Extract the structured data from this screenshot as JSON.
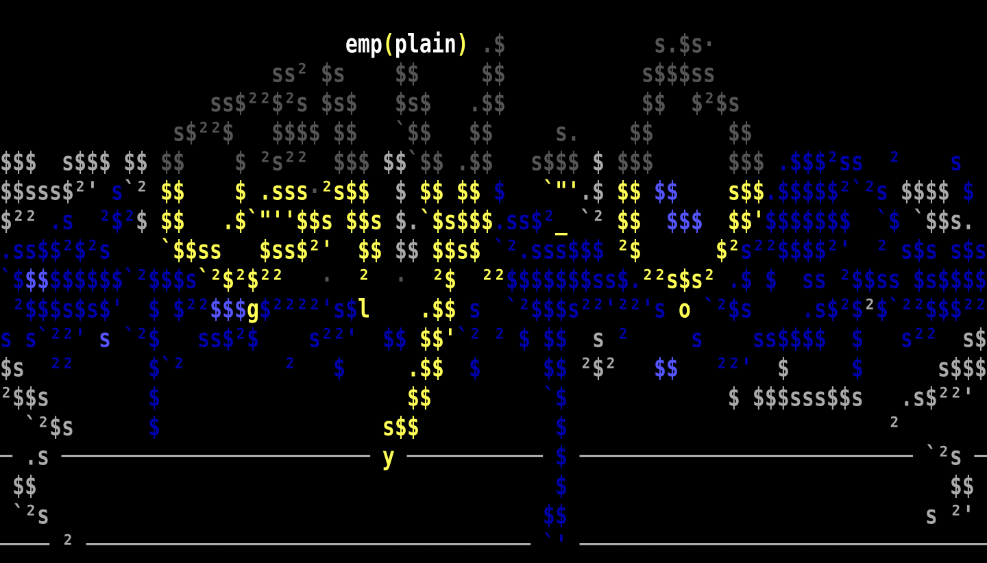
{
  "palette": {
    "W": "#ffffff",
    "Y": "#ffff55",
    "G": "#aaaaaa",
    "D": "#555555",
    "B": "#0000aa",
    "L": "#5555ff"
  },
  "rows": [
    [],
    [
      [
        "                            ",
        ""
      ],
      [
        "emp",
        "W"
      ],
      [
        "(",
        "Y"
      ],
      [
        "plain",
        "W"
      ],
      [
        ")",
        "Y"
      ],
      [
        " ",
        ""
      ],
      [
        ".$",
        "D"
      ],
      [
        "            ",
        ""
      ],
      [
        "s.$s·",
        "D"
      ]
    ],
    [
      [
        "                      ",
        ""
      ],
      [
        "ss² $s",
        "D"
      ],
      [
        "    ",
        ""
      ],
      [
        "$$",
        "D"
      ],
      [
        "     ",
        ""
      ],
      [
        "$$",
        "D"
      ],
      [
        "           ",
        ""
      ],
      [
        "s$$$ss",
        "D"
      ]
    ],
    [
      [
        "                 ",
        ""
      ],
      [
        "ss$²²$²s $s$",
        "D"
      ],
      [
        "   ",
        ""
      ],
      [
        "$s$",
        "D"
      ],
      [
        "   ",
        ""
      ],
      [
        ".$$",
        "D"
      ],
      [
        "           ",
        ""
      ],
      [
        "$$  $²$s",
        "D"
      ]
    ],
    [
      [
        "              ",
        ""
      ],
      [
        "s$²²$",
        "D"
      ],
      [
        "   ",
        ""
      ],
      [
        "$$$$ $$",
        "D"
      ],
      [
        "   ",
        ""
      ],
      [
        "`$$",
        "D"
      ],
      [
        "   ",
        ""
      ],
      [
        "$$",
        "D"
      ],
      [
        "     ",
        ""
      ],
      [
        "s.",
        "D"
      ],
      [
        "    ",
        ""
      ],
      [
        "$$",
        "D"
      ],
      [
        "      ",
        ""
      ],
      [
        "$$",
        "D"
      ]
    ],
    [
      [
        "$$$",
        "G"
      ],
      [
        "  ",
        ""
      ],
      [
        "s$$$ $$",
        "G"
      ],
      [
        " ",
        ""
      ],
      [
        "$$",
        "D"
      ],
      [
        "    ",
        ""
      ],
      [
        "$",
        "D"
      ],
      [
        " ",
        ""
      ],
      [
        "²s²²",
        "D"
      ],
      [
        "  ",
        ""
      ],
      [
        "$$$",
        "D"
      ],
      [
        " ",
        ""
      ],
      [
        "$$",
        "G"
      ],
      [
        "`$$ .$$",
        "D"
      ],
      [
        "   ",
        ""
      ],
      [
        "s$$$",
        "D"
      ],
      [
        " ",
        ""
      ],
      [
        "$",
        "G"
      ],
      [
        " ",
        ""
      ],
      [
        "$$$",
        "D"
      ],
      [
        "      ",
        ""
      ],
      [
        "$$$",
        "D"
      ],
      [
        " ",
        ""
      ],
      [
        ".$$$²ss",
        "B"
      ],
      [
        "  ",
        ""
      ],
      [
        "²",
        "B"
      ],
      [
        "    ",
        ""
      ],
      [
        "s",
        "B"
      ]
    ],
    [
      [
        "$$sss$²'",
        "G"
      ],
      [
        " ",
        ""
      ],
      [
        "s",
        "B"
      ],
      [
        "`²",
        "G"
      ],
      [
        " ",
        ""
      ],
      [
        "$$",
        "Y"
      ],
      [
        "    ",
        ""
      ],
      [
        "$",
        "Y"
      ],
      [
        " ",
        ""
      ],
      [
        ".sss",
        "Y"
      ],
      [
        "·",
        "D"
      ],
      [
        "²s$$",
        "Y"
      ],
      [
        "  ",
        ""
      ],
      [
        "$",
        "G"
      ],
      [
        " ",
        ""
      ],
      [
        "$$ $$",
        "Y"
      ],
      [
        " ",
        ""
      ],
      [
        "$",
        "B"
      ],
      [
        "   ",
        ""
      ],
      [
        "`\"'",
        "Y"
      ],
      [
        ".$",
        "G"
      ],
      [
        " ",
        ""
      ],
      [
        "$$",
        "Y"
      ],
      [
        " ",
        ""
      ],
      [
        "$$",
        "L"
      ],
      [
        "    ",
        ""
      ],
      [
        "s$$",
        "Y"
      ],
      [
        ".$$$$$²`²s",
        "B"
      ],
      [
        " ",
        ""
      ],
      [
        "$$$$",
        "G"
      ],
      [
        " ",
        ""
      ],
      [
        "$",
        "B"
      ]
    ],
    [
      [
        "$²²",
        "G"
      ],
      [
        " ",
        ""
      ],
      [
        ".s",
        "B"
      ],
      [
        "  ",
        ""
      ],
      [
        "²$²",
        "B"
      ],
      [
        "$",
        "G"
      ],
      [
        " ",
        ""
      ],
      [
        "$$",
        "Y"
      ],
      [
        "   ",
        ""
      ],
      [
        ".$`\"''$$s $$s",
        "Y"
      ],
      [
        " ",
        ""
      ],
      [
        "$.",
        "G"
      ],
      [
        "`$s$$$",
        "Y"
      ],
      [
        ".ss$²",
        "B"
      ],
      [
        "_",
        "Y"
      ],
      [
        " ",
        ""
      ],
      [
        "`²",
        "G"
      ],
      [
        " ",
        ""
      ],
      [
        "$$",
        "Y"
      ],
      [
        "  ",
        ""
      ],
      [
        "$$$",
        "L"
      ],
      [
        "  ",
        ""
      ],
      [
        "$$'",
        "Y"
      ],
      [
        "$$$$$$$",
        "B"
      ],
      [
        "  ",
        ""
      ],
      [
        "`$",
        "B"
      ],
      [
        " ",
        ""
      ],
      [
        "`$$s.",
        "G"
      ]
    ],
    [
      [
        ".ss$$²$²s",
        "B"
      ],
      [
        "    ",
        ""
      ],
      [
        "`$$ss",
        "Y"
      ],
      [
        "   ",
        ""
      ],
      [
        "$ss$²'",
        "Y"
      ],
      [
        "  ",
        ""
      ],
      [
        "$$",
        "Y"
      ],
      [
        " ",
        ""
      ],
      [
        "$$",
        "G"
      ],
      [
        " ",
        ""
      ],
      [
        "$$s$",
        "Y"
      ],
      [
        " ",
        ""
      ],
      [
        "`²",
        "B"
      ],
      [
        ".sss$$$",
        "B"
      ],
      [
        " ",
        ""
      ],
      [
        "²$",
        "Y"
      ],
      [
        "      ",
        ""
      ],
      [
        "$²",
        "Y"
      ],
      [
        "s²²$$$$²'",
        "B"
      ],
      [
        "  ",
        ""
      ],
      [
        "²",
        "B"
      ],
      [
        " ",
        ""
      ],
      [
        "s$s",
        "B"
      ],
      [
        " ",
        ""
      ],
      [
        "s$s",
        "B"
      ]
    ],
    [
      [
        "`$",
        "B"
      ],
      [
        "$$",
        "L"
      ],
      [
        "$$$$$$",
        "B"
      ],
      [
        "`²$$$s",
        "B"
      ],
      [
        "`²$²$²²",
        "Y"
      ],
      [
        "   ",
        ""
      ],
      [
        "·",
        "D"
      ],
      [
        "  ",
        ""
      ],
      [
        "²",
        "Y"
      ],
      [
        "  ",
        ""
      ],
      [
        "·",
        "D"
      ],
      [
        "  ",
        ""
      ],
      [
        "²$",
        "Y"
      ],
      [
        "  ",
        ""
      ],
      [
        "²²",
        "Y"
      ],
      [
        "$$$$$$$ss$.",
        "B"
      ],
      [
        "²²s$s²",
        "Y"
      ],
      [
        " ",
        ""
      ],
      [
        ".$ $",
        "B"
      ],
      [
        "  ",
        ""
      ],
      [
        "ss",
        "B"
      ],
      [
        " ",
        ""
      ],
      [
        "²$$ss",
        "B"
      ],
      [
        " ",
        ""
      ],
      [
        "$s$$$$",
        "B"
      ]
    ],
    [
      [
        " ",
        ""
      ],
      [
        "²$$$s$s$'",
        "B"
      ],
      [
        "  ",
        ""
      ],
      [
        "$",
        "B"
      ],
      [
        " ",
        ""
      ],
      [
        "$²²",
        "B"
      ],
      [
        "$$$",
        "L"
      ],
      [
        "g",
        "Y"
      ],
      [
        "$²²²²'s$",
        "B"
      ],
      [
        "l",
        "Y"
      ],
      [
        "    ",
        ""
      ],
      [
        ".$$",
        "Y"
      ],
      [
        " ",
        ""
      ],
      [
        "s",
        "B"
      ],
      [
        "  ",
        ""
      ],
      [
        "`²$$$s²²'²²'s",
        "B"
      ],
      [
        " ",
        ""
      ],
      [
        "o",
        "Y"
      ],
      [
        " ",
        ""
      ],
      [
        "`²$s",
        "B"
      ],
      [
        "    ",
        ""
      ],
      [
        ".s$²$",
        "B"
      ],
      [
        "²",
        "G"
      ],
      [
        "$`²²$$$²²",
        "B"
      ]
    ],
    [
      [
        "s s`²²'",
        "B"
      ],
      [
        " ",
        ""
      ],
      [
        "s",
        "L"
      ],
      [
        " ",
        ""
      ],
      [
        "`²$",
        "B"
      ],
      [
        "   ",
        ""
      ],
      [
        "ss$²$",
        "B"
      ],
      [
        "    ",
        ""
      ],
      [
        "s²²'",
        "B"
      ],
      [
        "  ",
        ""
      ],
      [
        "$$",
        "B"
      ],
      [
        " ",
        ""
      ],
      [
        "$$'",
        "Y"
      ],
      [
        "`²",
        "B"
      ],
      [
        " ",
        ""
      ],
      [
        "²",
        "B"
      ],
      [
        " ",
        ""
      ],
      [
        "$",
        "B"
      ],
      [
        " ",
        ""
      ],
      [
        "$$",
        "B"
      ],
      [
        "  ",
        ""
      ],
      [
        "s",
        "G"
      ],
      [
        " ",
        ""
      ],
      [
        "²",
        "B"
      ],
      [
        "     ",
        ""
      ],
      [
        "s",
        "B"
      ],
      [
        "    ",
        ""
      ],
      [
        "ss$$$$",
        "B"
      ],
      [
        "  ",
        ""
      ],
      [
        "$",
        "B"
      ],
      [
        "   ",
        ""
      ],
      [
        "s²²",
        "B"
      ],
      [
        "  ",
        ""
      ],
      [
        "s$",
        "G"
      ]
    ],
    [
      [
        "$s",
        "G"
      ],
      [
        "  ",
        ""
      ],
      [
        "²²",
        "B"
      ],
      [
        "      ",
        ""
      ],
      [
        "$`²",
        "B"
      ],
      [
        "        ",
        ""
      ],
      [
        "²",
        "B"
      ],
      [
        "   ",
        ""
      ],
      [
        "$",
        "B"
      ],
      [
        "     ",
        ""
      ],
      [
        ".$$",
        "Y"
      ],
      [
        "  ",
        ""
      ],
      [
        "$",
        "B"
      ],
      [
        "     ",
        ""
      ],
      [
        "$$",
        "B"
      ],
      [
        " ",
        ""
      ],
      [
        "²$²",
        "G"
      ],
      [
        "   ",
        ""
      ],
      [
        "$$",
        "L"
      ],
      [
        "   ",
        ""
      ],
      [
        "²²'",
        "B"
      ],
      [
        "  ",
        ""
      ],
      [
        "$",
        "G"
      ],
      [
        "     ",
        ""
      ],
      [
        "$",
        "B"
      ],
      [
        "      ",
        ""
      ],
      [
        "s$$$",
        "G"
      ]
    ],
    [
      [
        "²$$s",
        "G"
      ],
      [
        "        ",
        ""
      ],
      [
        "$",
        "B"
      ],
      [
        "                    ",
        ""
      ],
      [
        "$$",
        "Y"
      ],
      [
        "         ",
        ""
      ],
      [
        "`$",
        "B"
      ],
      [
        "             ",
        ""
      ],
      [
        "$ $$$sss$$s",
        "G"
      ],
      [
        "   ",
        ""
      ],
      [
        ".s$²²'",
        "G"
      ]
    ],
    [
      [
        "  ",
        ""
      ],
      [
        "`²$s",
        "G"
      ],
      [
        "      ",
        ""
      ],
      [
        "$",
        "B"
      ],
      [
        "                  ",
        ""
      ],
      [
        "s$$",
        "Y"
      ],
      [
        "           ",
        ""
      ],
      [
        "$",
        "B"
      ],
      [
        "                          ",
        ""
      ],
      [
        "²",
        "G"
      ]
    ],
    [
      [
        "─",
        "G"
      ],
      [
        " ",
        ""
      ],
      [
        ".s",
        "G"
      ],
      [
        " ",
        ""
      ],
      [
        "─────────────────────────",
        "G"
      ],
      [
        " ",
        ""
      ],
      [
        "y",
        "Y"
      ],
      [
        " ",
        ""
      ],
      [
        "───────────",
        "G"
      ],
      [
        " ",
        ""
      ],
      [
        "$",
        "B"
      ],
      [
        " ",
        ""
      ],
      [
        "───────────────────────────",
        "G"
      ],
      [
        " ",
        ""
      ],
      [
        "`²s",
        "G"
      ],
      [
        " ",
        ""
      ],
      [
        "─",
        "G"
      ]
    ],
    [
      [
        " ",
        ""
      ],
      [
        "$$",
        "G"
      ],
      [
        "                                          ",
        ""
      ],
      [
        "$",
        "B"
      ],
      [
        "                               ",
        ""
      ],
      [
        "$$",
        "G"
      ]
    ],
    [
      [
        " ",
        ""
      ],
      [
        "`²s",
        "G"
      ],
      [
        "                                        ",
        ""
      ],
      [
        "$$",
        "B"
      ],
      [
        "                             ",
        ""
      ],
      [
        "s",
        "G"
      ],
      [
        " ",
        ""
      ],
      [
        "²'",
        "G"
      ]
    ],
    [
      [
        "────",
        "G"
      ],
      [
        " ",
        ""
      ],
      [
        "²",
        "G"
      ],
      [
        " ",
        ""
      ],
      [
        "────────────────────────────────────",
        "G"
      ],
      [
        " ",
        ""
      ],
      [
        "`'",
        "B"
      ],
      [
        " ",
        ""
      ],
      [
        "─────────────────────────────────",
        "G"
      ]
    ]
  ]
}
